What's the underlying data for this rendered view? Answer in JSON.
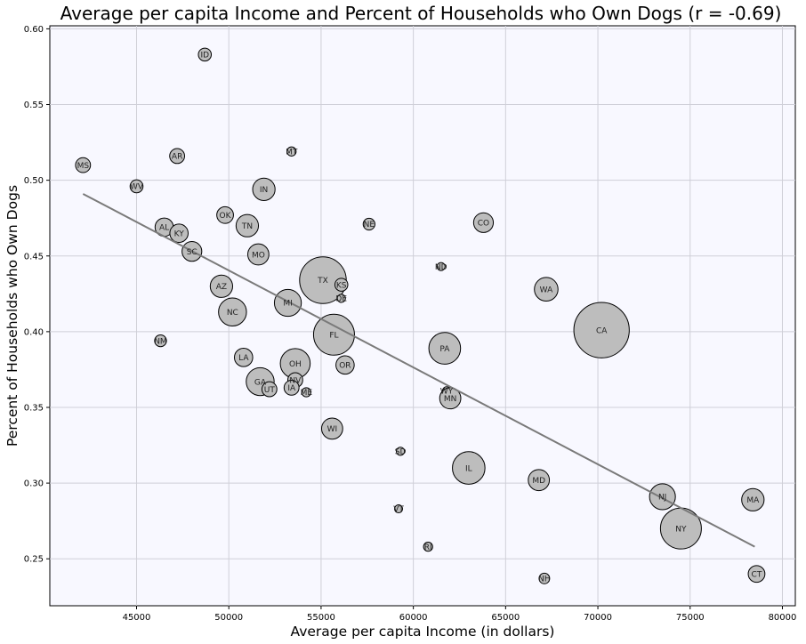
{
  "chart_data": {
    "type": "scatter",
    "title": "Average per capita Income and Percent of Households who Own Dogs (r = -0.69)",
    "xlabel": "Average per capita Income (in dollars)",
    "ylabel": "Percent of Households who Own Dogs",
    "xlim": [
      40300,
      80700
    ],
    "ylim": [
      0.219,
      0.602
    ],
    "xticks": [
      45000,
      50000,
      55000,
      60000,
      65000,
      70000,
      75000,
      80000
    ],
    "yticks": [
      0.25,
      0.3,
      0.35,
      0.4,
      0.45,
      0.5,
      0.55,
      0.6
    ],
    "grid": true,
    "marker_size_encodes": "relative size (unlabeled)",
    "trendline": {
      "x": [
        42100,
        78500
      ],
      "y": [
        0.491,
        0.258
      ]
    },
    "points": [
      {
        "label": "ID",
        "x": 48700,
        "y": 0.583,
        "size": 3
      },
      {
        "label": "MS",
        "x": 42100,
        "y": 0.51,
        "size": 4
      },
      {
        "label": "WV",
        "x": 45000,
        "y": 0.496,
        "size": 3
      },
      {
        "label": "AR",
        "x": 47200,
        "y": 0.516,
        "size": 4
      },
      {
        "label": "MT",
        "x": 53400,
        "y": 0.519,
        "size": 1.5
      },
      {
        "label": "IN",
        "x": 51900,
        "y": 0.494,
        "size": 9
      },
      {
        "label": "OK",
        "x": 49800,
        "y": 0.477,
        "size": 5
      },
      {
        "label": "TN",
        "x": 51000,
        "y": 0.47,
        "size": 9
      },
      {
        "label": "AL",
        "x": 46500,
        "y": 0.469,
        "size": 6
      },
      {
        "label": "KY",
        "x": 47300,
        "y": 0.465,
        "size": 6
      },
      {
        "label": "SC",
        "x": 48000,
        "y": 0.453,
        "size": 7
      },
      {
        "label": "MO",
        "x": 51600,
        "y": 0.451,
        "size": 8
      },
      {
        "label": "NE",
        "x": 57600,
        "y": 0.471,
        "size": 2.5
      },
      {
        "label": "CO",
        "x": 63800,
        "y": 0.472,
        "size": 7
      },
      {
        "label": "ND",
        "x": 61500,
        "y": 0.443,
        "size": 1.2
      },
      {
        "label": "AZ",
        "x": 49600,
        "y": 0.43,
        "size": 9
      },
      {
        "label": "TX",
        "x": 55100,
        "y": 0.434,
        "size": 39
      },
      {
        "label": "KS",
        "x": 56100,
        "y": 0.431,
        "size": 3
      },
      {
        "label": "DE",
        "x": 56100,
        "y": 0.422,
        "size": 1.2
      },
      {
        "label": "WA",
        "x": 67200,
        "y": 0.428,
        "size": 10
      },
      {
        "label": "MI",
        "x": 53200,
        "y": 0.419,
        "size": 13
      },
      {
        "label": "NC",
        "x": 50200,
        "y": 0.413,
        "size": 14
      },
      {
        "label": "NM",
        "x": 46300,
        "y": 0.394,
        "size": 2.5
      },
      {
        "label": "FL",
        "x": 55700,
        "y": 0.398,
        "size": 30
      },
      {
        "label": "CA",
        "x": 70200,
        "y": 0.401,
        "size": 55
      },
      {
        "label": "PA",
        "x": 61700,
        "y": 0.389,
        "size": 18
      },
      {
        "label": "LA",
        "x": 50800,
        "y": 0.383,
        "size": 6
      },
      {
        "label": "OH",
        "x": 53600,
        "y": 0.379,
        "size": 16
      },
      {
        "label": "OR",
        "x": 56300,
        "y": 0.378,
        "size": 6
      },
      {
        "label": "GA",
        "x": 51700,
        "y": 0.367,
        "size": 14
      },
      {
        "label": "NV",
        "x": 53600,
        "y": 0.368,
        "size": 4
      },
      {
        "label": "UT",
        "x": 52200,
        "y": 0.362,
        "size": 4
      },
      {
        "label": "IA",
        "x": 53400,
        "y": 0.363,
        "size": 4
      },
      {
        "label": "ME",
        "x": 54200,
        "y": 0.36,
        "size": 1.5
      },
      {
        "label": "WY",
        "x": 61800,
        "y": 0.361,
        "size": 1
      },
      {
        "label": "MN",
        "x": 62000,
        "y": 0.356,
        "size": 8
      },
      {
        "label": "WI",
        "x": 55600,
        "y": 0.336,
        "size": 8
      },
      {
        "label": "SD",
        "x": 59300,
        "y": 0.321,
        "size": 1.2
      },
      {
        "label": "IL",
        "x": 63000,
        "y": 0.31,
        "size": 19
      },
      {
        "label": "MD",
        "x": 66800,
        "y": 0.302,
        "size": 8
      },
      {
        "label": "NJ",
        "x": 73500,
        "y": 0.291,
        "size": 12
      },
      {
        "label": "MA",
        "x": 78400,
        "y": 0.289,
        "size": 9
      },
      {
        "label": "VT",
        "x": 59200,
        "y": 0.283,
        "size": 0.8
      },
      {
        "label": "NY",
        "x": 74500,
        "y": 0.27,
        "size": 30
      },
      {
        "label": "RI",
        "x": 60800,
        "y": 0.258,
        "size": 1.5
      },
      {
        "label": "CT",
        "x": 78600,
        "y": 0.24,
        "size": 5
      },
      {
        "label": "NH",
        "x": 67100,
        "y": 0.237,
        "size": 2
      }
    ]
  }
}
